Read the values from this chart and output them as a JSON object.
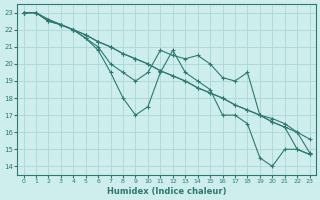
{
  "xlabel": "Humidex (Indice chaleur)",
  "background_color": "#ceeeed",
  "grid_color": "#a8d8d5",
  "line_color": "#2d7870",
  "xlim": [
    -0.5,
    23.5
  ],
  "ylim": [
    13.5,
    23.5
  ],
  "xticks": [
    0,
    1,
    2,
    3,
    4,
    5,
    6,
    7,
    8,
    9,
    10,
    11,
    12,
    13,
    14,
    15,
    16,
    17,
    18,
    19,
    20,
    21,
    22,
    23
  ],
  "yticks": [
    14,
    15,
    16,
    17,
    18,
    19,
    20,
    21,
    22,
    23
  ],
  "lines": [
    {
      "x": [
        0,
        1,
        2,
        3,
        4,
        5,
        6,
        7,
        8,
        9,
        10,
        11,
        12,
        13,
        14,
        15,
        16,
        17,
        18,
        19,
        20,
        21,
        22,
        23
      ],
      "y": [
        23,
        23,
        22.6,
        22.3,
        22,
        21.7,
        21.3,
        21.0,
        20.6,
        20.3,
        20.0,
        19.6,
        19.3,
        19.0,
        18.6,
        18.3,
        18.0,
        17.6,
        17.3,
        17.0,
        16.6,
        16.3,
        16.0,
        15.6
      ]
    },
    {
      "x": [
        0,
        1,
        2,
        3,
        4,
        5,
        6,
        7,
        8,
        9,
        10,
        11,
        12,
        13,
        14,
        15,
        16,
        17,
        18,
        19,
        20,
        21,
        22,
        23
      ],
      "y": [
        23,
        23,
        22.6,
        22.3,
        22,
        21.7,
        21.3,
        21.0,
        20.6,
        20.3,
        20.0,
        19.6,
        19.3,
        19.0,
        18.6,
        18.3,
        18.0,
        17.6,
        17.3,
        17.0,
        16.6,
        16.3,
        15.0,
        14.7
      ]
    },
    {
      "x": [
        0,
        1,
        2,
        3,
        4,
        5,
        6,
        7,
        8,
        9,
        10,
        11,
        12,
        13,
        14,
        15,
        16,
        17,
        18,
        19,
        20,
        21,
        22,
        23
      ],
      "y": [
        23,
        23,
        22.5,
        22.3,
        22,
        21.5,
        21,
        20,
        19.5,
        19,
        19.5,
        20.8,
        20.5,
        20.3,
        20.5,
        20,
        19.2,
        19,
        19.5,
        17,
        16.8,
        16.5,
        16,
        14.8
      ]
    },
    {
      "x": [
        0,
        1,
        2,
        3,
        4,
        5,
        6,
        7,
        8,
        9,
        10,
        11,
        12,
        13,
        14,
        15,
        16,
        17,
        18,
        19,
        20,
        21,
        22,
        23
      ],
      "y": [
        23,
        23,
        22.5,
        22.3,
        22,
        21.5,
        20.8,
        19.5,
        18,
        17,
        17.5,
        19.5,
        20.8,
        19.5,
        19,
        18.5,
        17,
        17,
        16.5,
        14.5,
        14,
        15,
        15,
        14.7
      ]
    }
  ]
}
